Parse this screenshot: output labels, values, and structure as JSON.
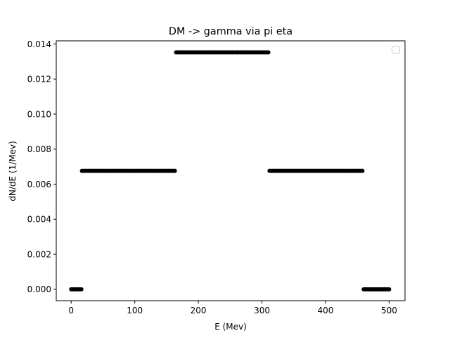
{
  "chart_data": {
    "type": "scatter",
    "title": "DM -> gamma via pi eta",
    "xlabel": "E (Mev)",
    "ylabel": "dN/dE (1/Mev)",
    "xlim": [
      -23.5,
      525
    ],
    "ylim": [
      -0.00065,
      0.01418
    ],
    "xticks": [
      0,
      100,
      200,
      300,
      400,
      500
    ],
    "xtick_labels": [
      "0",
      "100",
      "200",
      "300",
      "400",
      "500"
    ],
    "yticks": [
      0.0,
      0.002,
      0.004,
      0.006,
      0.008,
      0.01,
      0.012,
      0.014
    ],
    "ytick_labels": [
      "0.000",
      "0.002",
      "0.004",
      "0.006",
      "0.008",
      "0.010",
      "0.012",
      "0.014"
    ],
    "grid": false,
    "legend": {
      "position": "top-right",
      "entries": []
    },
    "series": [
      {
        "marker_color": "#000000",
        "segments": [
          {
            "x_start": 0,
            "x_end": 16,
            "y": 0.0,
            "n_points": 7
          },
          {
            "x_start": 17,
            "x_end": 163,
            "y": 0.00676,
            "n_points": 60
          },
          {
            "x_start": 165,
            "x_end": 310,
            "y": 0.01352,
            "n_points": 60
          },
          {
            "x_start": 312,
            "x_end": 458,
            "y": 0.00676,
            "n_points": 60
          },
          {
            "x_start": 460,
            "x_end": 500,
            "y": 0.0,
            "n_points": 17
          }
        ]
      }
    ]
  }
}
